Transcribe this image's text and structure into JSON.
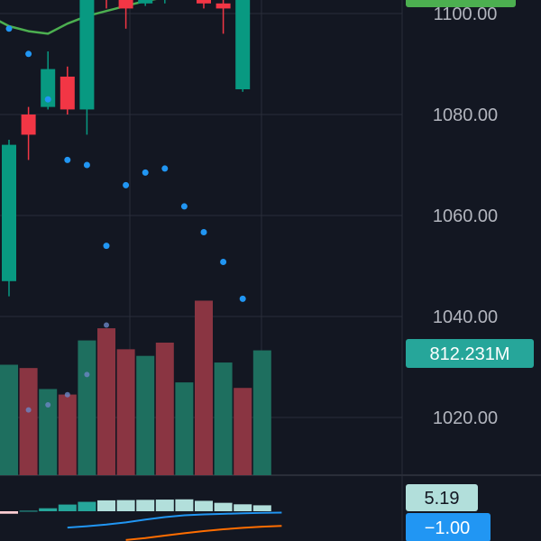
{
  "chart_data": {
    "type": "candlestick",
    "price_axis": {
      "ticks": [
        {
          "value": 1100,
          "label": "1100.00"
        },
        {
          "value": 1080,
          "label": "1080.00"
        },
        {
          "value": 1060,
          "label": "1060.00"
        },
        {
          "value": 1040,
          "label": "1040.00"
        },
        {
          "value": 1020,
          "label": "1020.00"
        }
      ],
      "visible_range": [
        1009.5,
        1102.5
      ]
    },
    "candles": [
      {
        "open": 1047,
        "high": 1075,
        "low": 1044,
        "close": 1074,
        "direction": "up"
      },
      {
        "open": 1080,
        "high": 1081.5,
        "low": 1071,
        "close": 1076,
        "direction": "down"
      },
      {
        "open": 1081.5,
        "high": 1092.5,
        "low": 1081,
        "close": 1089,
        "direction": "up"
      },
      {
        "open": 1087.5,
        "high": 1089.5,
        "low": 1080,
        "close": 1081,
        "direction": "down"
      },
      {
        "open": 1081,
        "high": 1106,
        "low": 1076,
        "close": 1104,
        "direction": "up"
      },
      {
        "open": 1115,
        "high": 1119,
        "low": 1101,
        "close": 1103,
        "direction": "down"
      },
      {
        "open": 1104,
        "high": 1105,
        "low": 1097,
        "close": 1101,
        "direction": "down"
      },
      {
        "open": 1102,
        "high": 1104,
        "low": 1101.5,
        "close": 1103,
        "direction": "up"
      },
      {
        "open": 1103,
        "high": 1105,
        "low": 1102,
        "close": 1104,
        "direction": "up"
      },
      {
        "open": 1104,
        "high": 1106,
        "low": 1103.5,
        "close": 1105,
        "direction": "up"
      },
      {
        "open": 1105,
        "high": 1106,
        "low": 1101,
        "close": 1102,
        "direction": "down"
      },
      {
        "open": 1102,
        "high": 1103,
        "low": 1096,
        "close": 1101,
        "direction": "down"
      },
      {
        "open": 1085,
        "high": 1105,
        "low": 1084.5,
        "close": 1104,
        "direction": "up"
      }
    ],
    "moving_average": [
      1099.5,
      1097.5,
      1096.5,
      1096,
      1098,
      1099.5,
      1100.5,
      1101.5,
      1102.5,
      1103.2,
      1104,
      1104,
      1104.5
    ],
    "sar_dots": [
      1097,
      1092,
      1083,
      1071,
      1070,
      1054,
      1066,
      1068.5,
      1069.3,
      1061.8,
      1056.7,
      1050.8,
      1043.5
    ],
    "volume": {
      "current": 812.231,
      "label": "812.231M",
      "values": [
        100,
        97,
        78,
        73,
        122,
        133,
        114,
        108,
        120,
        84,
        158,
        102,
        79,
        113
      ],
      "directions": [
        "up",
        "down",
        "up",
        "down",
        "up",
        "down",
        "down",
        "up",
        "down",
        "up",
        "down",
        "up",
        "down",
        "up"
      ],
      "faded_dots": [
        1021.5,
        1022.5,
        1024.5,
        1028.5,
        1038.3
      ]
    },
    "indicator": {
      "histogram": [
        -1.4,
        -0.5,
        0.1,
        0.6,
        1.35,
        1.9,
        2.2,
        2.25,
        2.3,
        2.35,
        2.4,
        2.1,
        1.7,
        1.4,
        1.2
      ],
      "fast_line": [
        -12.5,
        -11.5,
        -10.2,
        -8.5,
        -6.4,
        -4.5,
        -3.1,
        -2.4,
        -2.0,
        -1.55,
        -1.25,
        -1.0
      ],
      "slow_line": [
        -22,
        -20.5,
        -18.6,
        -16.8,
        -15.2,
        -13.8,
        -12.7,
        -11.8,
        -11.2
      ],
      "value_label": "5.19",
      "line_label": "−1.00"
    },
    "colors": {
      "background": "#131722",
      "grid": "#2a2e39",
      "up": "#26a69a",
      "down": "#ef5350",
      "up_candle": "#089981",
      "down_candle": "#f23645",
      "ma_line": "#4caf50",
      "sar_dot": "#2196f3",
      "volume_up": "#1e6f5f",
      "volume_down": "#8a3542",
      "hist_pos": "#26a69a",
      "hist_pos_light": "#b2dfdb",
      "hist_neg_light": "#ffcdd2",
      "fast_line": "#2196f3",
      "slow_line": "#ff6d00",
      "badge_volume": "#26a69a",
      "badge_indicator": "#b2dfdb",
      "badge_line": "#2196f3",
      "price_badge": "#4caf50"
    }
  }
}
